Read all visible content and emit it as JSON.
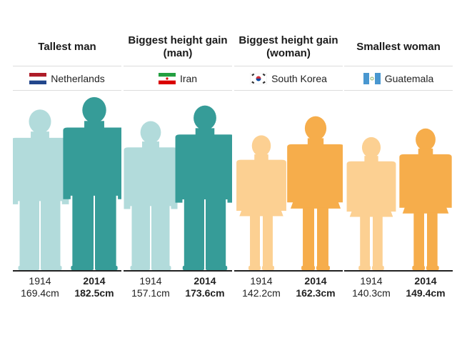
{
  "chart_data": {
    "type": "bar",
    "unit": "cm",
    "colors": {
      "man_1914": "#b2dbdb",
      "man_2014": "#369c98",
      "woman_1914": "#fcd092",
      "woman_2014": "#f6ad4b"
    },
    "panels": [
      {
        "title": "Tallest man",
        "country": "Netherlands",
        "flag_icon": "netherlands-flag-icon",
        "figure": "man",
        "bars": [
          {
            "year": "1914",
            "value": 169.4,
            "label": "169.4cm"
          },
          {
            "year": "2014",
            "value": 182.5,
            "label": "182.5cm"
          }
        ]
      },
      {
        "title": "Biggest height gain (man)",
        "country": "Iran",
        "flag_icon": "iran-flag-icon",
        "figure": "man",
        "bars": [
          {
            "year": "1914",
            "value": 157.1,
            "label": "157.1cm"
          },
          {
            "year": "2014",
            "value": 173.6,
            "label": "173.6cm"
          }
        ]
      },
      {
        "title": "Biggest height gain (woman)",
        "country": "South Korea",
        "flag_icon": "south-korea-flag-icon",
        "figure": "woman",
        "bars": [
          {
            "year": "1914",
            "value": 142.2,
            "label": "142.2cm"
          },
          {
            "year": "2014",
            "value": 162.3,
            "label": "162.3cm"
          }
        ]
      },
      {
        "title": "Smallest woman",
        "country": "Guatemala",
        "flag_icon": "guatemala-flag-icon",
        "figure": "woman",
        "bars": [
          {
            "year": "1914",
            "value": 140.3,
            "label": "140.3cm"
          },
          {
            "year": "2014",
            "value": 149.4,
            "label": "149.4cm"
          }
        ]
      }
    ]
  }
}
